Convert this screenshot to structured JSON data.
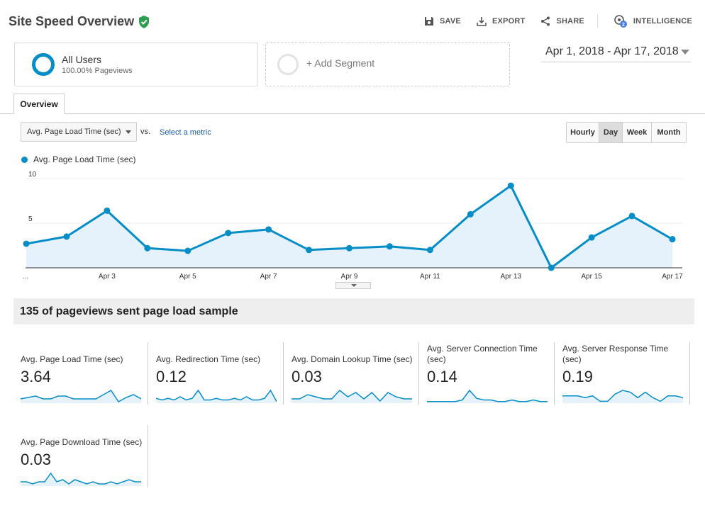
{
  "header": {
    "title": "Site Speed Overview",
    "actions": [
      {
        "label": "SAVE",
        "icon": "save-icon"
      },
      {
        "label": "EXPORT",
        "icon": "export-icon"
      },
      {
        "label": "SHARE",
        "icon": "share-icon"
      },
      {
        "label": "INTELLIGENCE",
        "icon": "intelligence-icon",
        "badge": "2"
      }
    ]
  },
  "segments": {
    "primary": {
      "name": "All Users",
      "subtitle": "100.00% Pageviews"
    },
    "add_label": "+ Add Segment"
  },
  "date_range": "Apr 1, 2018 - Apr 17, 2018",
  "tabs": [
    {
      "label": "Overview",
      "active": true
    }
  ],
  "metric_selector": {
    "selected": "Avg. Page Load Time (sec)",
    "vs_label": "vs.",
    "secondary_link": "Select a metric"
  },
  "granularity": [
    {
      "label": "Hourly",
      "active": false
    },
    {
      "label": "Day",
      "active": true
    },
    {
      "label": "Week",
      "active": false
    },
    {
      "label": "Month",
      "active": false
    }
  ],
  "colors": {
    "accent": "#058dc7",
    "area_fill": "#e6f2fb",
    "link": "#1a5aa6",
    "verified": "#2e9e4f"
  },
  "chart_data": {
    "type": "line",
    "series": [
      {
        "name": "Avg. Page Load Time (sec)",
        "x": [
          "Apr 1",
          "Apr 2",
          "Apr 3",
          "Apr 4",
          "Apr 5",
          "Apr 6",
          "Apr 7",
          "Apr 8",
          "Apr 9",
          "Apr 10",
          "Apr 11",
          "Apr 12",
          "Apr 13",
          "Apr 14",
          "Apr 15",
          "Apr 16",
          "Apr 17"
        ],
        "values": [
          2.7,
          3.5,
          6.4,
          2.2,
          1.9,
          3.9,
          4.3,
          2.0,
          2.2,
          2.4,
          2.0,
          6.0,
          9.2,
          0.0,
          3.4,
          5.8,
          3.2
        ]
      }
    ],
    "x_tick_labels": [
      "...",
      "Apr 3",
      "Apr 5",
      "Apr 7",
      "Apr 9",
      "Apr 11",
      "Apr 13",
      "Apr 15",
      "Apr 17"
    ],
    "y_tick_labels": [
      "5",
      "10"
    ],
    "ylim": [
      0,
      10
    ],
    "grid": true,
    "legend_position": "top-left"
  },
  "sample_text": "135 of pageviews sent page load sample",
  "metrics": [
    {
      "label": "Avg. Page Load Time (sec)",
      "value": "3.64",
      "spark": [
        3,
        4,
        5,
        3,
        3,
        5,
        5,
        3,
        3,
        3,
        3,
        6,
        9,
        1,
        4,
        6,
        3
      ]
    },
    {
      "label": "Avg. Redirection Time (sec)",
      "value": "0.12",
      "spark": [
        3,
        2,
        3,
        2,
        4,
        2,
        3,
        8,
        2,
        2,
        3,
        2,
        2,
        3,
        2,
        4,
        2,
        2,
        3,
        8,
        1
      ]
    },
    {
      "label": "Avg. Domain Lookup Time (sec)",
      "value": "0.03",
      "spark": [
        2,
        2,
        4,
        3,
        2,
        2,
        6,
        3,
        5,
        2,
        5,
        1,
        5,
        3,
        2,
        2
      ]
    },
    {
      "label": "Avg. Server Connection Time (sec)",
      "value": "0.14",
      "spark": [
        1,
        1,
        1,
        1,
        1,
        2,
        8,
        3,
        2,
        2,
        1,
        1,
        2,
        1,
        1,
        2,
        1,
        1
      ]
    },
    {
      "label": "Avg. Server Response Time (sec)",
      "value": "0.19",
      "spark": [
        4,
        4,
        4,
        3,
        4,
        1,
        1,
        5,
        7,
        6,
        3,
        6,
        3,
        1,
        4,
        4,
        3
      ]
    },
    {
      "label": "Avg. Page Download Time (sec)",
      "value": "0.03",
      "spark": [
        2,
        2,
        1,
        2,
        2,
        6,
        2,
        3,
        1,
        3,
        2,
        1,
        2,
        1,
        1,
        2,
        1,
        2,
        3,
        2,
        2
      ]
    }
  ]
}
